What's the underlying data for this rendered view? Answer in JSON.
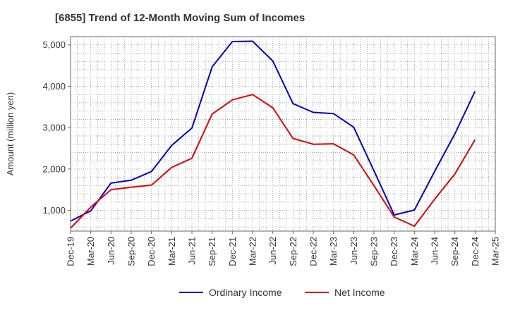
{
  "chart_data": {
    "type": "line",
    "title": "[6855]  Trend of 12-Month Moving Sum of Incomes",
    "xlabel": "",
    "ylabel": "Amount (million yen)",
    "ylim": [
      500,
      5200
    ],
    "yticks": [
      1000,
      2000,
      3000,
      4000,
      5000
    ],
    "ytick_labels": [
      "1,000",
      "2,000",
      "3,000",
      "4,000",
      "5,000"
    ],
    "categories": [
      "Dec-19",
      "Mar-20",
      "Jun-20",
      "Sep-20",
      "Dec-20",
      "Mar-21",
      "Jun-21",
      "Sep-21",
      "Dec-21",
      "Mar-22",
      "Jun-22",
      "Sep-22",
      "Dec-22",
      "Mar-23",
      "Jun-23",
      "Sep-23",
      "Dec-23",
      "Mar-24",
      "Jun-24",
      "Sep-24",
      "Dec-24",
      "Mar-25"
    ],
    "grid": true,
    "legend_position": "bottom",
    "series": [
      {
        "name": "Ordinary Income",
        "color": "#0000cc",
        "values": [
          740,
          990,
          1660,
          1730,
          1940,
          2570,
          2990,
          4470,
          5080,
          5090,
          4610,
          3580,
          3370,
          3340,
          3010,
          1960,
          890,
          1010,
          1940,
          2850,
          3880,
          null
        ]
      },
      {
        "name": "Net Income",
        "color": "#e00000",
        "values": [
          570,
          1080,
          1500,
          1560,
          1610,
          2040,
          2260,
          3330,
          3670,
          3800,
          3480,
          2740,
          2600,
          2610,
          2340,
          1600,
          840,
          620,
          1270,
          1880,
          2710,
          null
        ]
      }
    ]
  }
}
